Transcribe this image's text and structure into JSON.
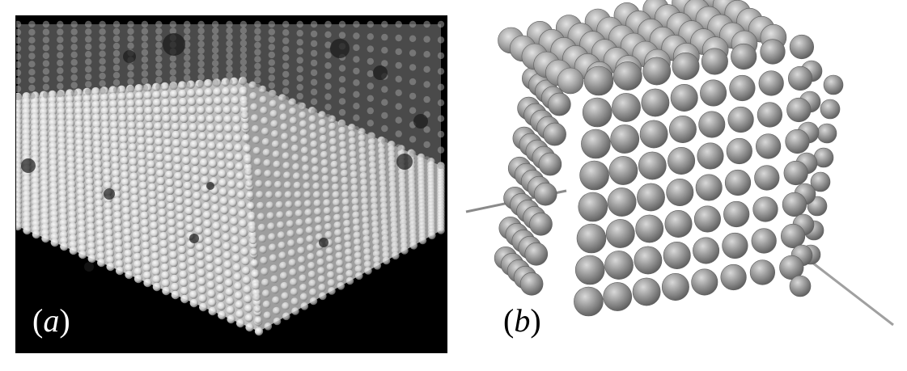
{
  "figure": {
    "panel_a": {
      "label_open": "(",
      "label_letter": "a",
      "label_close": ")",
      "background_color": "#000000",
      "sphere_color": "#e6e6e6"
    },
    "panel_b": {
      "label_open": "(",
      "label_letter": "b",
      "label_close": ")",
      "background_color": "#ffffff",
      "sphere_color": "#8f8f8f",
      "axis_color": "#9a9a9a"
    }
  }
}
